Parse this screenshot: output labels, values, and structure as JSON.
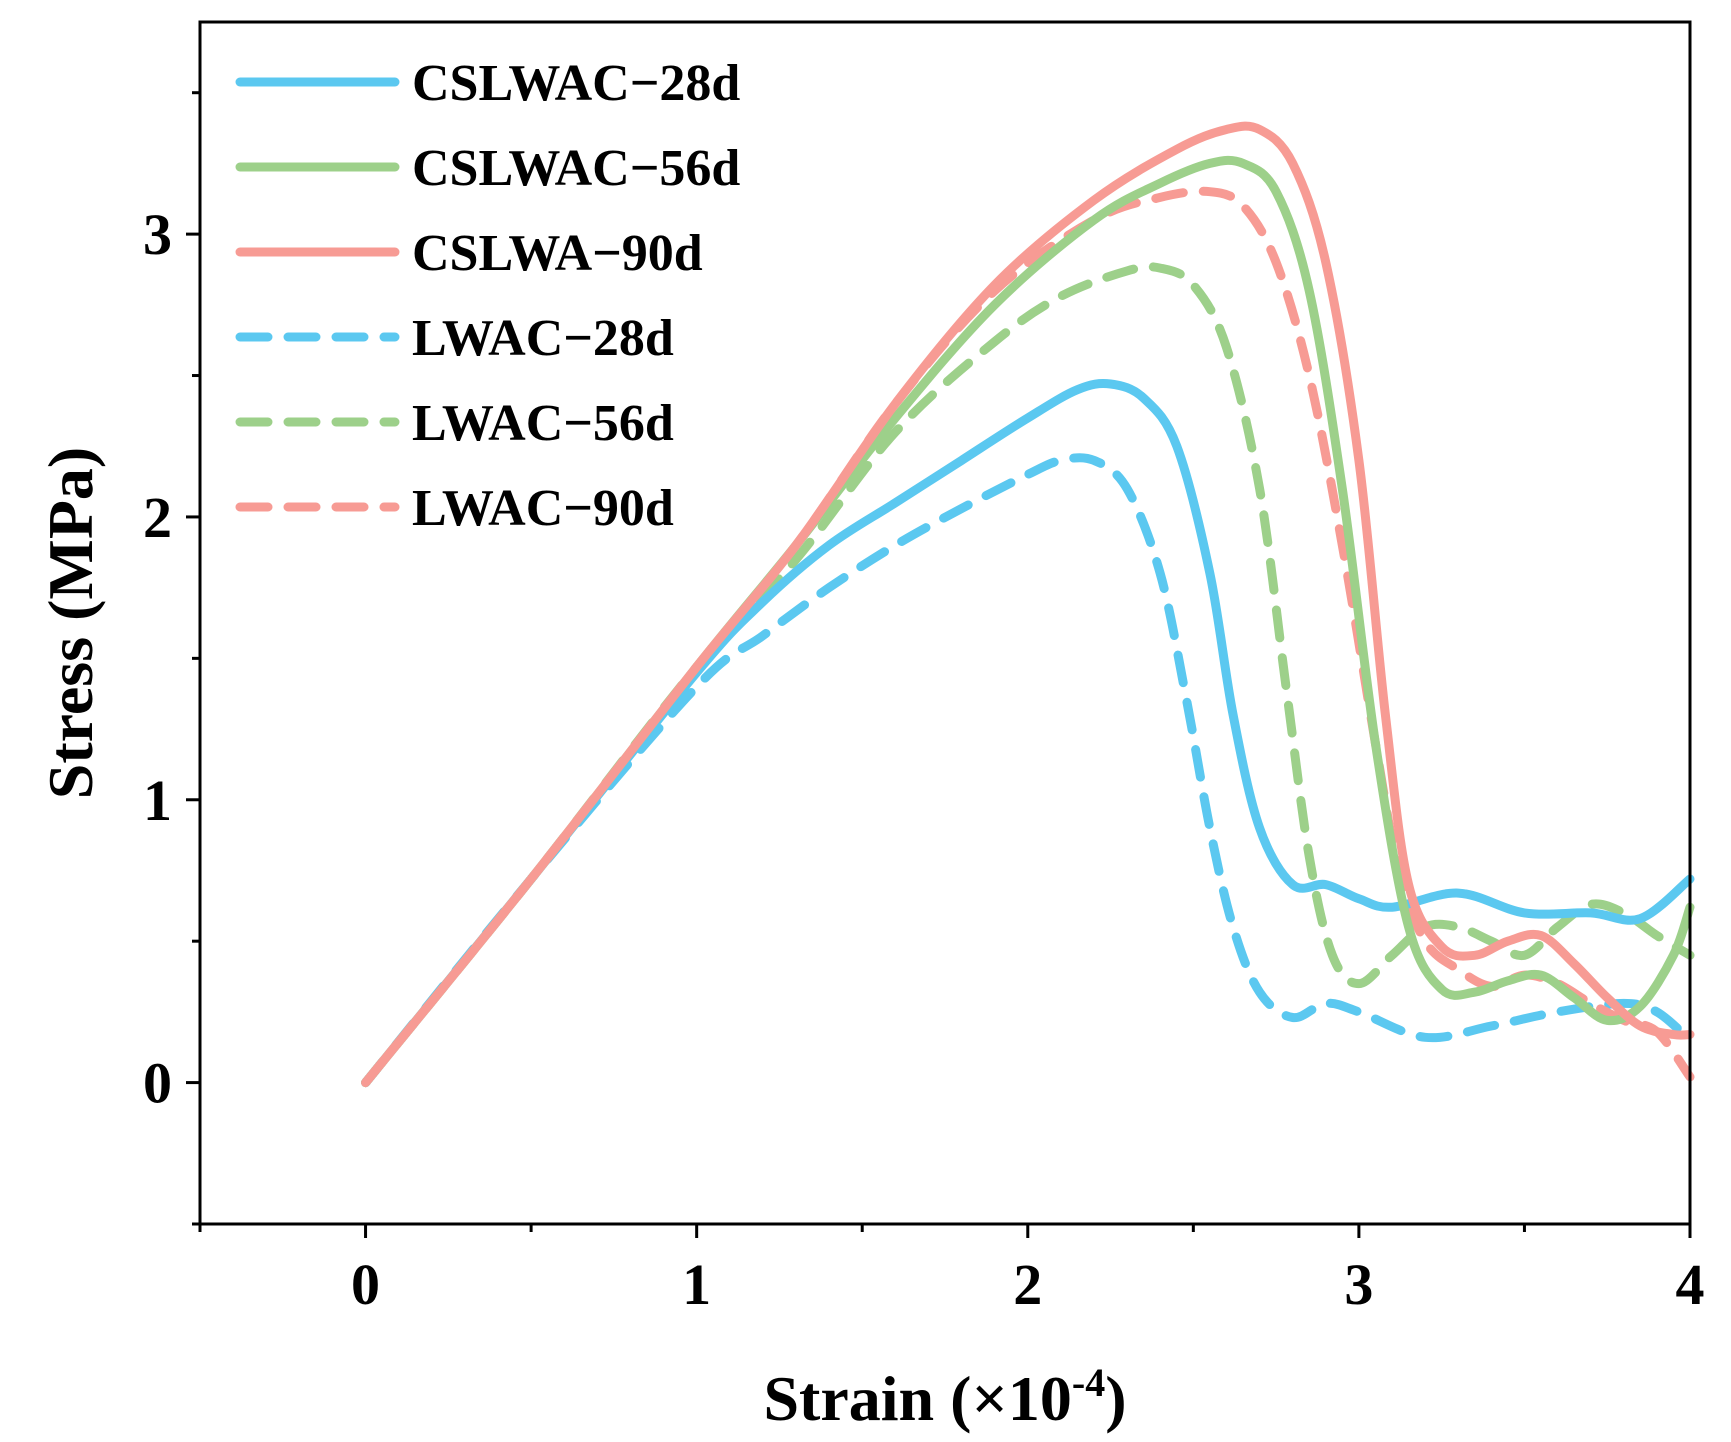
{
  "chart_data": {
    "type": "line",
    "xlabel_main": "Strain (×10",
    "xlabel_sup": "-4",
    "xlabel_close": ")",
    "ylabel": "Stress (MPa)",
    "xlim": [
      -0.5,
      4
    ],
    "ylim": [
      -0.5,
      3.75
    ],
    "x_ticks": [
      0,
      1,
      2,
      3,
      4
    ],
    "y_ticks": [
      0,
      1,
      2,
      3
    ],
    "x_tick_labels": [
      "0",
      "1",
      "2",
      "3",
      "4"
    ],
    "y_tick_labels": [
      "0",
      "1",
      "2",
      "3"
    ],
    "legend_position": "top-left",
    "series": [
      {
        "name": "CSLWAC−28d",
        "color": "#5bc8f0",
        "dash": "solid",
        "points": [
          [
            0,
            0
          ],
          [
            0.5,
            0.72
          ],
          [
            1.0,
            1.45
          ],
          [
            1.2,
            1.7
          ],
          [
            1.4,
            1.9
          ],
          [
            1.6,
            2.05
          ],
          [
            1.8,
            2.2
          ],
          [
            2.0,
            2.35
          ],
          [
            2.15,
            2.45
          ],
          [
            2.25,
            2.47
          ],
          [
            2.35,
            2.42
          ],
          [
            2.45,
            2.25
          ],
          [
            2.55,
            1.8
          ],
          [
            2.62,
            1.3
          ],
          [
            2.7,
            0.9
          ],
          [
            2.8,
            0.7
          ],
          [
            2.9,
            0.7
          ],
          [
            3.0,
            0.65
          ],
          [
            3.1,
            0.62
          ],
          [
            3.3,
            0.67
          ],
          [
            3.5,
            0.6
          ],
          [
            3.7,
            0.6
          ],
          [
            3.85,
            0.58
          ],
          [
            4.0,
            0.72
          ]
        ]
      },
      {
        "name": "CSLWAC−56d",
        "color": "#9dd08a",
        "dash": "solid",
        "points": [
          [
            0,
            0
          ],
          [
            0.5,
            0.72
          ],
          [
            1.0,
            1.47
          ],
          [
            1.3,
            1.9
          ],
          [
            1.6,
            2.35
          ],
          [
            1.9,
            2.75
          ],
          [
            2.2,
            3.05
          ],
          [
            2.4,
            3.18
          ],
          [
            2.55,
            3.25
          ],
          [
            2.65,
            3.25
          ],
          [
            2.75,
            3.15
          ],
          [
            2.85,
            2.8
          ],
          [
            2.95,
            2.1
          ],
          [
            3.05,
            1.2
          ],
          [
            3.15,
            0.55
          ],
          [
            3.25,
            0.33
          ],
          [
            3.35,
            0.32
          ],
          [
            3.45,
            0.36
          ],
          [
            3.55,
            0.38
          ],
          [
            3.65,
            0.3
          ],
          [
            3.75,
            0.22
          ],
          [
            3.85,
            0.27
          ],
          [
            3.95,
            0.45
          ],
          [
            4.0,
            0.62
          ]
        ]
      },
      {
        "name": "CSLWA−90d",
        "color": "#f79b94",
        "dash": "solid",
        "points": [
          [
            0,
            0
          ],
          [
            0.5,
            0.72
          ],
          [
            1.0,
            1.47
          ],
          [
            1.3,
            1.9
          ],
          [
            1.6,
            2.4
          ],
          [
            1.9,
            2.82
          ],
          [
            2.2,
            3.12
          ],
          [
            2.45,
            3.3
          ],
          [
            2.6,
            3.37
          ],
          [
            2.7,
            3.37
          ],
          [
            2.8,
            3.25
          ],
          [
            2.9,
            2.9
          ],
          [
            3.0,
            2.2
          ],
          [
            3.08,
            1.3
          ],
          [
            3.15,
            0.7
          ],
          [
            3.25,
            0.48
          ],
          [
            3.35,
            0.45
          ],
          [
            3.45,
            0.5
          ],
          [
            3.55,
            0.52
          ],
          [
            3.65,
            0.42
          ],
          [
            3.75,
            0.3
          ],
          [
            3.85,
            0.2
          ],
          [
            3.95,
            0.17
          ],
          [
            4.0,
            0.17
          ]
        ]
      },
      {
        "name": "LWAC−28d",
        "color": "#5bc8f0",
        "dash": "dashed",
        "points": [
          [
            0,
            0
          ],
          [
            0.5,
            0.72
          ],
          [
            1.0,
            1.4
          ],
          [
            1.2,
            1.58
          ],
          [
            1.4,
            1.75
          ],
          [
            1.6,
            1.9
          ],
          [
            1.8,
            2.03
          ],
          [
            2.0,
            2.15
          ],
          [
            2.1,
            2.2
          ],
          [
            2.2,
            2.2
          ],
          [
            2.3,
            2.1
          ],
          [
            2.4,
            1.8
          ],
          [
            2.48,
            1.35
          ],
          [
            2.55,
            0.9
          ],
          [
            2.62,
            0.55
          ],
          [
            2.7,
            0.32
          ],
          [
            2.8,
            0.23
          ],
          [
            2.9,
            0.28
          ],
          [
            3.0,
            0.25
          ],
          [
            3.2,
            0.16
          ],
          [
            3.4,
            0.2
          ],
          [
            3.6,
            0.25
          ],
          [
            3.8,
            0.28
          ],
          [
            3.9,
            0.25
          ],
          [
            4.0,
            0.15
          ]
        ]
      },
      {
        "name": "LWAC−56d",
        "color": "#9dd08a",
        "dash": "dashed",
        "points": [
          [
            0,
            0
          ],
          [
            0.5,
            0.72
          ],
          [
            1.0,
            1.47
          ],
          [
            1.3,
            1.85
          ],
          [
            1.6,
            2.3
          ],
          [
            1.9,
            2.62
          ],
          [
            2.1,
            2.78
          ],
          [
            2.3,
            2.87
          ],
          [
            2.4,
            2.88
          ],
          [
            2.5,
            2.82
          ],
          [
            2.6,
            2.6
          ],
          [
            2.7,
            2.1
          ],
          [
            2.78,
            1.4
          ],
          [
            2.85,
            0.8
          ],
          [
            2.92,
            0.45
          ],
          [
            3.0,
            0.35
          ],
          [
            3.1,
            0.45
          ],
          [
            3.2,
            0.55
          ],
          [
            3.3,
            0.55
          ],
          [
            3.4,
            0.5
          ],
          [
            3.5,
            0.45
          ],
          [
            3.6,
            0.55
          ],
          [
            3.7,
            0.63
          ],
          [
            3.8,
            0.6
          ],
          [
            3.9,
            0.52
          ],
          [
            4.0,
            0.45
          ]
        ]
      },
      {
        "name": "LWAC−90d",
        "color": "#f79b94",
        "dash": "dashed",
        "points": [
          [
            0,
            0
          ],
          [
            0.5,
            0.72
          ],
          [
            1.0,
            1.47
          ],
          [
            1.3,
            1.9
          ],
          [
            1.6,
            2.4
          ],
          [
            1.9,
            2.8
          ],
          [
            2.2,
            3.05
          ],
          [
            2.4,
            3.13
          ],
          [
            2.55,
            3.15
          ],
          [
            2.65,
            3.1
          ],
          [
            2.75,
            2.9
          ],
          [
            2.85,
            2.5
          ],
          [
            2.95,
            1.9
          ],
          [
            3.05,
            1.2
          ],
          [
            3.12,
            0.75
          ],
          [
            3.2,
            0.5
          ],
          [
            3.3,
            0.4
          ],
          [
            3.4,
            0.34
          ],
          [
            3.5,
            0.38
          ],
          [
            3.6,
            0.35
          ],
          [
            3.7,
            0.28
          ],
          [
            3.8,
            0.22
          ],
          [
            3.9,
            0.18
          ],
          [
            4.0,
            0.02
          ]
        ]
      }
    ]
  }
}
